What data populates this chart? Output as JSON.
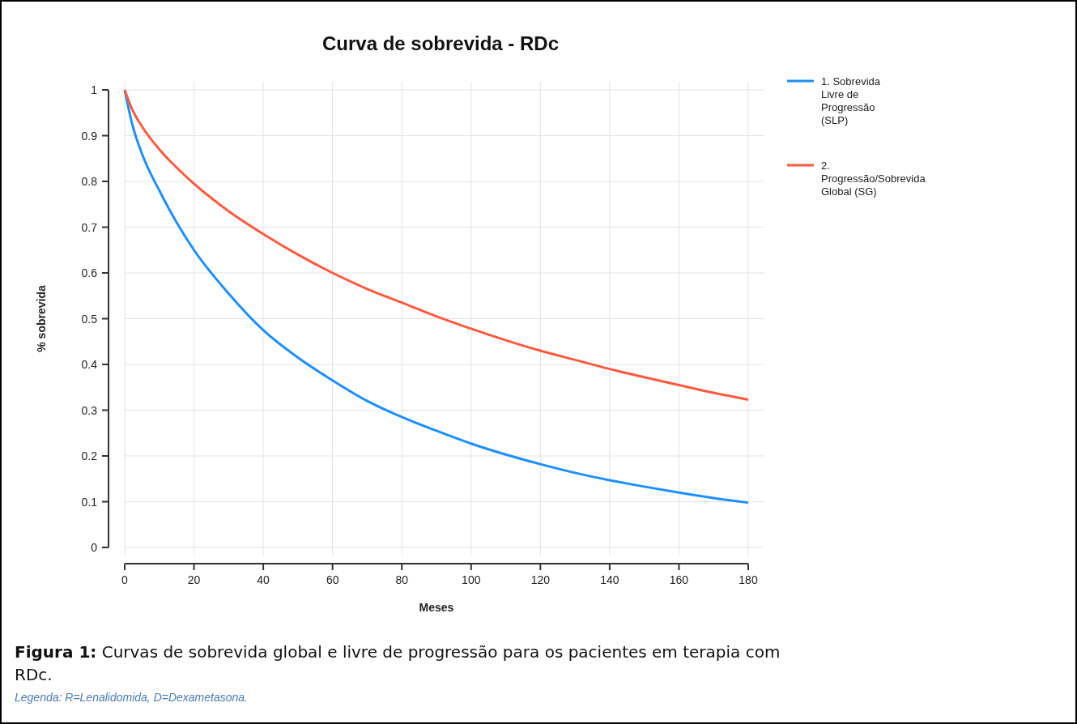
{
  "chart_data": {
    "type": "line",
    "title": "Curva de sobrevida - RDc",
    "xlabel": "Meses",
    "ylabel": "% sobrevida",
    "x": [
      0,
      2,
      5,
      10,
      15,
      20,
      30,
      40,
      50,
      60,
      70,
      80,
      90,
      100,
      110,
      120,
      130,
      140,
      150,
      160,
      170,
      180
    ],
    "series": [
      {
        "name": "1. Sobrevida Livre de Progressão (SLP)",
        "color": "#1e8fff",
        "values": [
          1,
          0.93,
          0.86,
          0.78,
          0.71,
          0.65,
          0.555,
          0.475,
          0.415,
          0.365,
          0.32,
          0.285,
          0.255,
          0.227,
          0.203,
          0.182,
          0.163,
          0.147,
          0.133,
          0.12,
          0.108,
          0.098
        ]
      },
      {
        "name": "2. Progressão/Sobrevida Global (SG)",
        "color": "#ff5a40",
        "values": [
          1,
          0.96,
          0.92,
          0.87,
          0.83,
          0.795,
          0.735,
          0.685,
          0.64,
          0.6,
          0.565,
          0.535,
          0.505,
          0.478,
          0.453,
          0.43,
          0.41,
          0.39,
          0.372,
          0.355,
          0.338,
          0.323
        ]
      }
    ],
    "xlim": [
      0,
      180
    ],
    "xticks": [
      0,
      20,
      40,
      60,
      80,
      100,
      120,
      140,
      160,
      180
    ],
    "ylim": [
      0,
      1
    ],
    "yticks": [
      0,
      0.1,
      0.2,
      0.3,
      0.4,
      0.5,
      0.6,
      0.7,
      0.8,
      0.9,
      1
    ],
    "grid": true,
    "legend": "right",
    "marker": "none",
    "line_style": "solid",
    "annotations": [
      "Figura 1: Curvas de sobrevida global e livre de progressão para os pacientes em terapia com RDc.",
      "Legenda: R=Lenalidomida, D=Dexametasona."
    ]
  }
}
